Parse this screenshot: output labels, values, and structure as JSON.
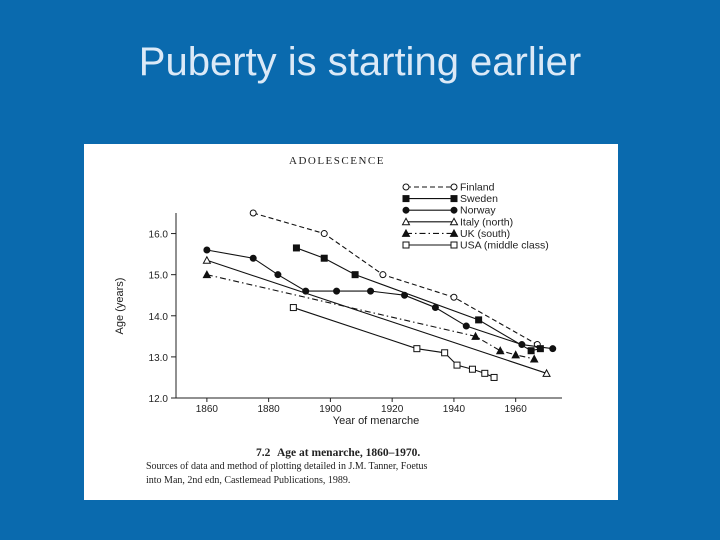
{
  "slide": {
    "title": "Puberty is starting earlier"
  },
  "figure": {
    "header": "ADOLESCENCE",
    "caption_number": "7.2",
    "caption_title": "Age at menarche, 1860–1970.",
    "caption_line1": "Sources of data and method of plotting detailed in J.M. Tanner, Foetus",
    "caption_line2": "into Man, 2nd edn, Castlemead Publications, 1989."
  },
  "chart_data": {
    "type": "line",
    "xlabel": "Year of menarche",
    "ylabel": "Age (years)",
    "xlim": [
      1850,
      1975
    ],
    "ylim": [
      12.0,
      16.5
    ],
    "xticks": [
      1860,
      1880,
      1900,
      1920,
      1940,
      1960
    ],
    "yticks": [
      12.0,
      13.0,
      14.0,
      15.0,
      16.0
    ],
    "xtick_labels": [
      "1860",
      "1880",
      "1900",
      "1920",
      "1940",
      "1960"
    ],
    "ytick_labels": [
      "12.0",
      "13.0",
      "14.0",
      "15.0",
      "16.0"
    ],
    "legend_position": "top-right",
    "series": [
      {
        "name": "Finland",
        "marker": "circle-open",
        "dash": "dashed",
        "x": [
          1875,
          1898,
          1917,
          1940,
          1967
        ],
        "y": [
          16.5,
          16.0,
          15.0,
          14.45,
          13.3
        ]
      },
      {
        "name": "Sweden",
        "marker": "square-filled",
        "dash": "solid",
        "x": [
          1889,
          1898,
          1908,
          1948,
          1965,
          1968
        ],
        "y": [
          15.65,
          15.4,
          15.0,
          13.9,
          13.15,
          13.2
        ]
      },
      {
        "name": "Norway",
        "marker": "circle-filled",
        "dash": "solid",
        "x": [
          1860,
          1875,
          1883,
          1892,
          1902,
          1913,
          1924,
          1934,
          1944,
          1962,
          1972
        ],
        "y": [
          15.6,
          15.4,
          15.0,
          14.6,
          14.6,
          14.6,
          14.5,
          14.2,
          13.75,
          13.3,
          13.2
        ]
      },
      {
        "name": "Italy (north)",
        "marker": "triangle-open",
        "dash": "solid",
        "x": [
          1860,
          1970
        ],
        "y": [
          15.35,
          12.6
        ]
      },
      {
        "name": "UK (south)",
        "marker": "triangle-filled",
        "dash": "dashdot",
        "x": [
          1860,
          1947,
          1955,
          1960,
          1966
        ],
        "y": [
          15.0,
          13.5,
          13.15,
          13.05,
          12.95
        ]
      },
      {
        "name": "USA (middle class)",
        "marker": "square-open",
        "dash": "solid",
        "x": [
          1888,
          1928,
          1937,
          1941,
          1946,
          1950,
          1953
        ],
        "y": [
          14.2,
          13.2,
          13.1,
          12.8,
          12.7,
          12.6,
          12.5
        ]
      }
    ]
  }
}
